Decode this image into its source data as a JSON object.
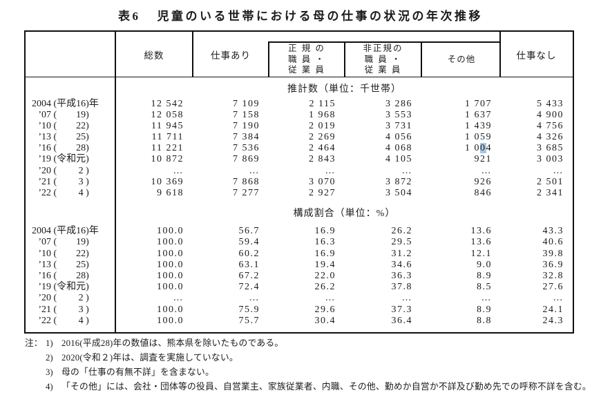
{
  "title": {
    "prefix": "表6",
    "text": "児童のいる世帯における母の仕事の状況の年次推移"
  },
  "table": {
    "year_open": " (",
    "year_close": ")",
    "header": {
      "total": "総数",
      "working": "仕事あり",
      "regular_lines": [
        "正 規 の",
        "職 員 ・",
        "従 業 員"
      ],
      "nonregular_lines": [
        "非正規の",
        "職 員 ・",
        "従 業 員"
      ],
      "other": "その他",
      "not_working": "仕事なし"
    },
    "sections": [
      {
        "heading": "推計数（単位：千世帯）",
        "rows": [
          {
            "year_num": "2004",
            "year_paren": "平成16",
            "year_suffix": "年",
            "values": [
              "12 542",
              "7 109",
              "2 115",
              "3 286",
              "1 707",
              "5 433"
            ]
          },
          {
            "year_num": "’07",
            "year_paren": "19",
            "values": [
              "12 058",
              "7 158",
              "1 968",
              "3 553",
              "1 637",
              "4 900"
            ]
          },
          {
            "year_num": "’10",
            "year_paren": "22",
            "values": [
              "11 945",
              "7 190",
              "2 019",
              "3 731",
              "1 439",
              "4 756"
            ]
          },
          {
            "year_num": "’13",
            "year_paren": "25",
            "values": [
              "11 711",
              "7 384",
              "2 269",
              "4 056",
              "1 059",
              "4 326"
            ]
          },
          {
            "year_num": "’16",
            "year_paren": "28",
            "values": [
              "11 221",
              "7 536",
              "2 464",
              "4 068",
              "1 004",
              "3 685"
            ],
            "highlight": {
              "col": 4,
              "pre": "1 0",
              "mark": "0",
              "post": "4"
            }
          },
          {
            "year_num": "’19",
            "year_paren": "令和元",
            "values": [
              "10 872",
              "7 869",
              "2 843",
              "4 105",
              "921",
              "3 003"
            ]
          },
          {
            "year_num": "’20",
            "year_paren": "2 ",
            "values": [
              "…",
              "…",
              "…",
              "…",
              "…",
              "…"
            ]
          },
          {
            "year_num": "’21",
            "year_paren": "3 ",
            "values": [
              "10 369",
              "7 868",
              "3 070",
              "3 872",
              "926",
              "2 501"
            ]
          },
          {
            "year_num": "’22",
            "year_paren": "4 ",
            "values": [
              "9 618",
              "7 277",
              "2 927",
              "3 504",
              "846",
              "2 341"
            ]
          }
        ]
      },
      {
        "heading": "構成割合（単位：%）",
        "rows": [
          {
            "year_num": "2004",
            "year_paren": "平成16",
            "year_suffix": "年",
            "values": [
              "100.0",
              "56.7",
              "16.9",
              "26.2",
              "13.6",
              "43.3"
            ]
          },
          {
            "year_num": "’07",
            "year_paren": "19",
            "values": [
              "100.0",
              "59.4",
              "16.3",
              "29.5",
              "13.6",
              "40.6"
            ]
          },
          {
            "year_num": "’10",
            "year_paren": "22",
            "values": [
              "100.0",
              "60.2",
              "16.9",
              "31.2",
              "12.1",
              "39.8"
            ]
          },
          {
            "year_num": "’13",
            "year_paren": "25",
            "values": [
              "100.0",
              "63.1",
              "19.4",
              "34.6",
              "9.0",
              "36.9"
            ]
          },
          {
            "year_num": "’16",
            "year_paren": "28",
            "values": [
              "100.0",
              "67.2",
              "22.0",
              "36.3",
              "8.9",
              "32.8"
            ]
          },
          {
            "year_num": "’19",
            "year_paren": "令和元",
            "values": [
              "100.0",
              "72.4",
              "26.2",
              "37.8",
              "8.5",
              "27.6"
            ]
          },
          {
            "year_num": "’20",
            "year_paren": "2 ",
            "values": [
              "…",
              "…",
              "…",
              "…",
              "…",
              "…"
            ]
          },
          {
            "year_num": "’21",
            "year_paren": "3 ",
            "values": [
              "100.0",
              "75.9",
              "29.6",
              "37.3",
              "8.9",
              "24.1"
            ]
          },
          {
            "year_num": "’22",
            "year_paren": "4 ",
            "values": [
              "100.0",
              "75.7",
              "30.4",
              "36.4",
              "8.8",
              "24.3"
            ]
          }
        ]
      }
    ]
  },
  "notes": {
    "prefix": "注：",
    "items": [
      {
        "num": "1)",
        "text": "2016(平成28)年の数値は、熊本県を除いたものである。"
      },
      {
        "num": "2)",
        "text": "2020(令和２)年は、調査を実施していない。"
      },
      {
        "num": "3)",
        "text": "母の「仕事の有無不詳」を含まない。"
      },
      {
        "num": "4)",
        "text": "「その他」には、会社・団体等の役員、自営業主、家族従業者、内職、その他、勤めか自営か不詳及び勤め先での呼称不詳を含む。"
      }
    ]
  },
  "highlight_color": "#a9c7e0"
}
